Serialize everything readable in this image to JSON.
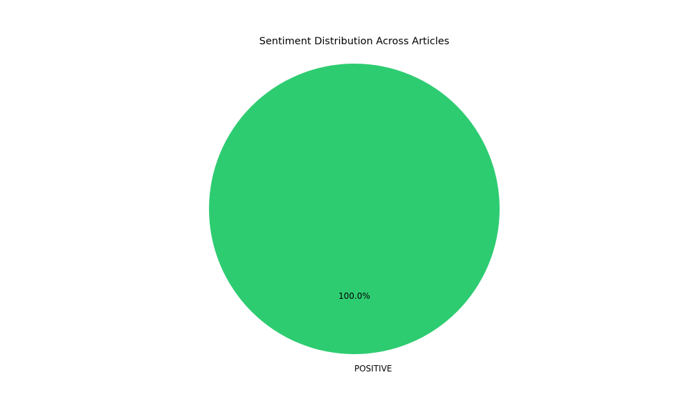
{
  "chart_data": {
    "type": "pie",
    "title": "Sentiment Distribution Across Articles",
    "slices": [
      {
        "label": "POSITIVE",
        "value": 100.0,
        "percent_label": "100.0%",
        "color": "#2ecc71"
      }
    ],
    "start_angle_deg": 90,
    "legend": "none"
  }
}
